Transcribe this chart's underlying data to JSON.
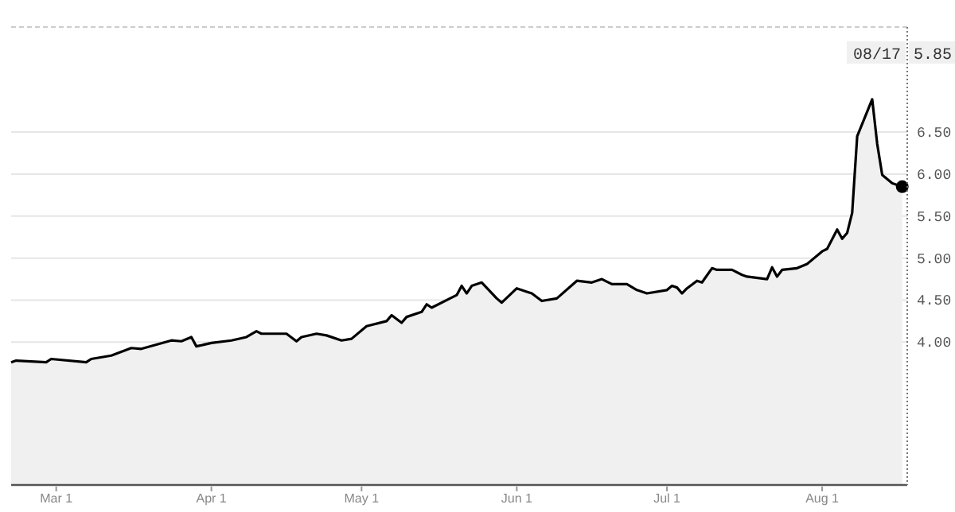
{
  "chart_data": {
    "type": "area",
    "grid": "y",
    "marker": "none",
    "line_style": "solid",
    "x": [
      "--02-20",
      "--02-21",
      "--02-27",
      "--02-28",
      "--03-07",
      "--03-08",
      "--03-12",
      "--03-16",
      "--03-18",
      "--03-21",
      "--03-24",
      "--03-26",
      "--03-28",
      "--03-29",
      "--04-01",
      "--04-05",
      "--04-08",
      "--04-10",
      "--04-11",
      "--04-16",
      "--04-18",
      "--04-19",
      "--04-22",
      "--04-24",
      "--04-27",
      "--04-29",
      "--05-02",
      "--05-06",
      "--05-07",
      "--05-09",
      "--05-10",
      "--05-13",
      "--05-14",
      "--05-15",
      "--05-20",
      "--05-21",
      "--05-22",
      "--05-23",
      "--05-25",
      "--05-28",
      "--05-29",
      "--06-01",
      "--06-03",
      "--06-04",
      "--06-06",
      "--06-09",
      "--06-13",
      "--06-16",
      "--06-18",
      "--06-20",
      "--06-23",
      "--06-25",
      "--06-27",
      "--07-01",
      "--07-02",
      "--07-03",
      "--07-04",
      "--07-05",
      "--07-07",
      "--07-08",
      "--07-10",
      "--07-11",
      "--07-14",
      "--07-16",
      "--07-17",
      "--07-21",
      "--07-22",
      "--07-23",
      "--07-24",
      "--07-27",
      "--07-29",
      "--08-01",
      "--08-02",
      "--08-04",
      "--08-05",
      "--08-06",
      "--08-07",
      "--08-08",
      "--08-11",
      "--08-12",
      "--08-13",
      "--08-15",
      "--08-17"
    ],
    "series": [
      {
        "color": "#000000",
        "values": [
          3.76,
          3.78,
          3.76,
          3.8,
          3.76,
          3.8,
          3.84,
          3.93,
          3.92,
          3.97,
          4.02,
          4.01,
          4.06,
          3.95,
          3.99,
          4.02,
          4.06,
          4.13,
          4.1,
          4.1,
          4.01,
          4.06,
          4.1,
          4.08,
          4.02,
          4.04,
          4.19,
          4.25,
          4.32,
          4.23,
          4.3,
          4.36,
          4.45,
          4.41,
          4.56,
          4.67,
          4.58,
          4.67,
          4.71,
          4.52,
          4.47,
          4.64,
          4.6,
          4.58,
          4.49,
          4.52,
          4.73,
          4.71,
          4.75,
          4.69,
          4.69,
          4.62,
          4.58,
          4.62,
          4.67,
          4.65,
          4.58,
          4.64,
          4.73,
          4.71,
          4.88,
          4.86,
          4.86,
          4.8,
          4.78,
          4.75,
          4.89,
          4.78,
          4.86,
          4.88,
          4.93,
          5.08,
          5.11,
          5.34,
          5.23,
          5.3,
          5.54,
          6.45,
          6.89,
          6.36,
          5.99,
          5.89,
          5.85
        ]
      }
    ],
    "xlim": [
      "--02-20",
      "--08-18"
    ],
    "xticks": [
      {
        "value": "--03-01",
        "label": "Mar 1"
      },
      {
        "value": "--04-01",
        "label": "Apr 1"
      },
      {
        "value": "--05-01",
        "label": "May 1"
      },
      {
        "value": "--06-01",
        "label": "Jun 1"
      },
      {
        "value": "--07-01",
        "label": "Jul 1"
      },
      {
        "value": "--08-01",
        "label": "Aug 1"
      }
    ],
    "ylim": [
      2.3,
      7.75
    ],
    "yticks": [
      {
        "value": 4,
        "label": "4.00"
      },
      {
        "value": 4.5,
        "label": "4.50"
      },
      {
        "value": 5,
        "label": "5.00"
      },
      {
        "value": 5.5,
        "label": "5.50"
      },
      {
        "value": 6,
        "label": "6.00"
      },
      {
        "value": 6.5,
        "label": "6.50"
      }
    ],
    "annotations": [
      "08/17",
      "5.85"
    ]
  }
}
